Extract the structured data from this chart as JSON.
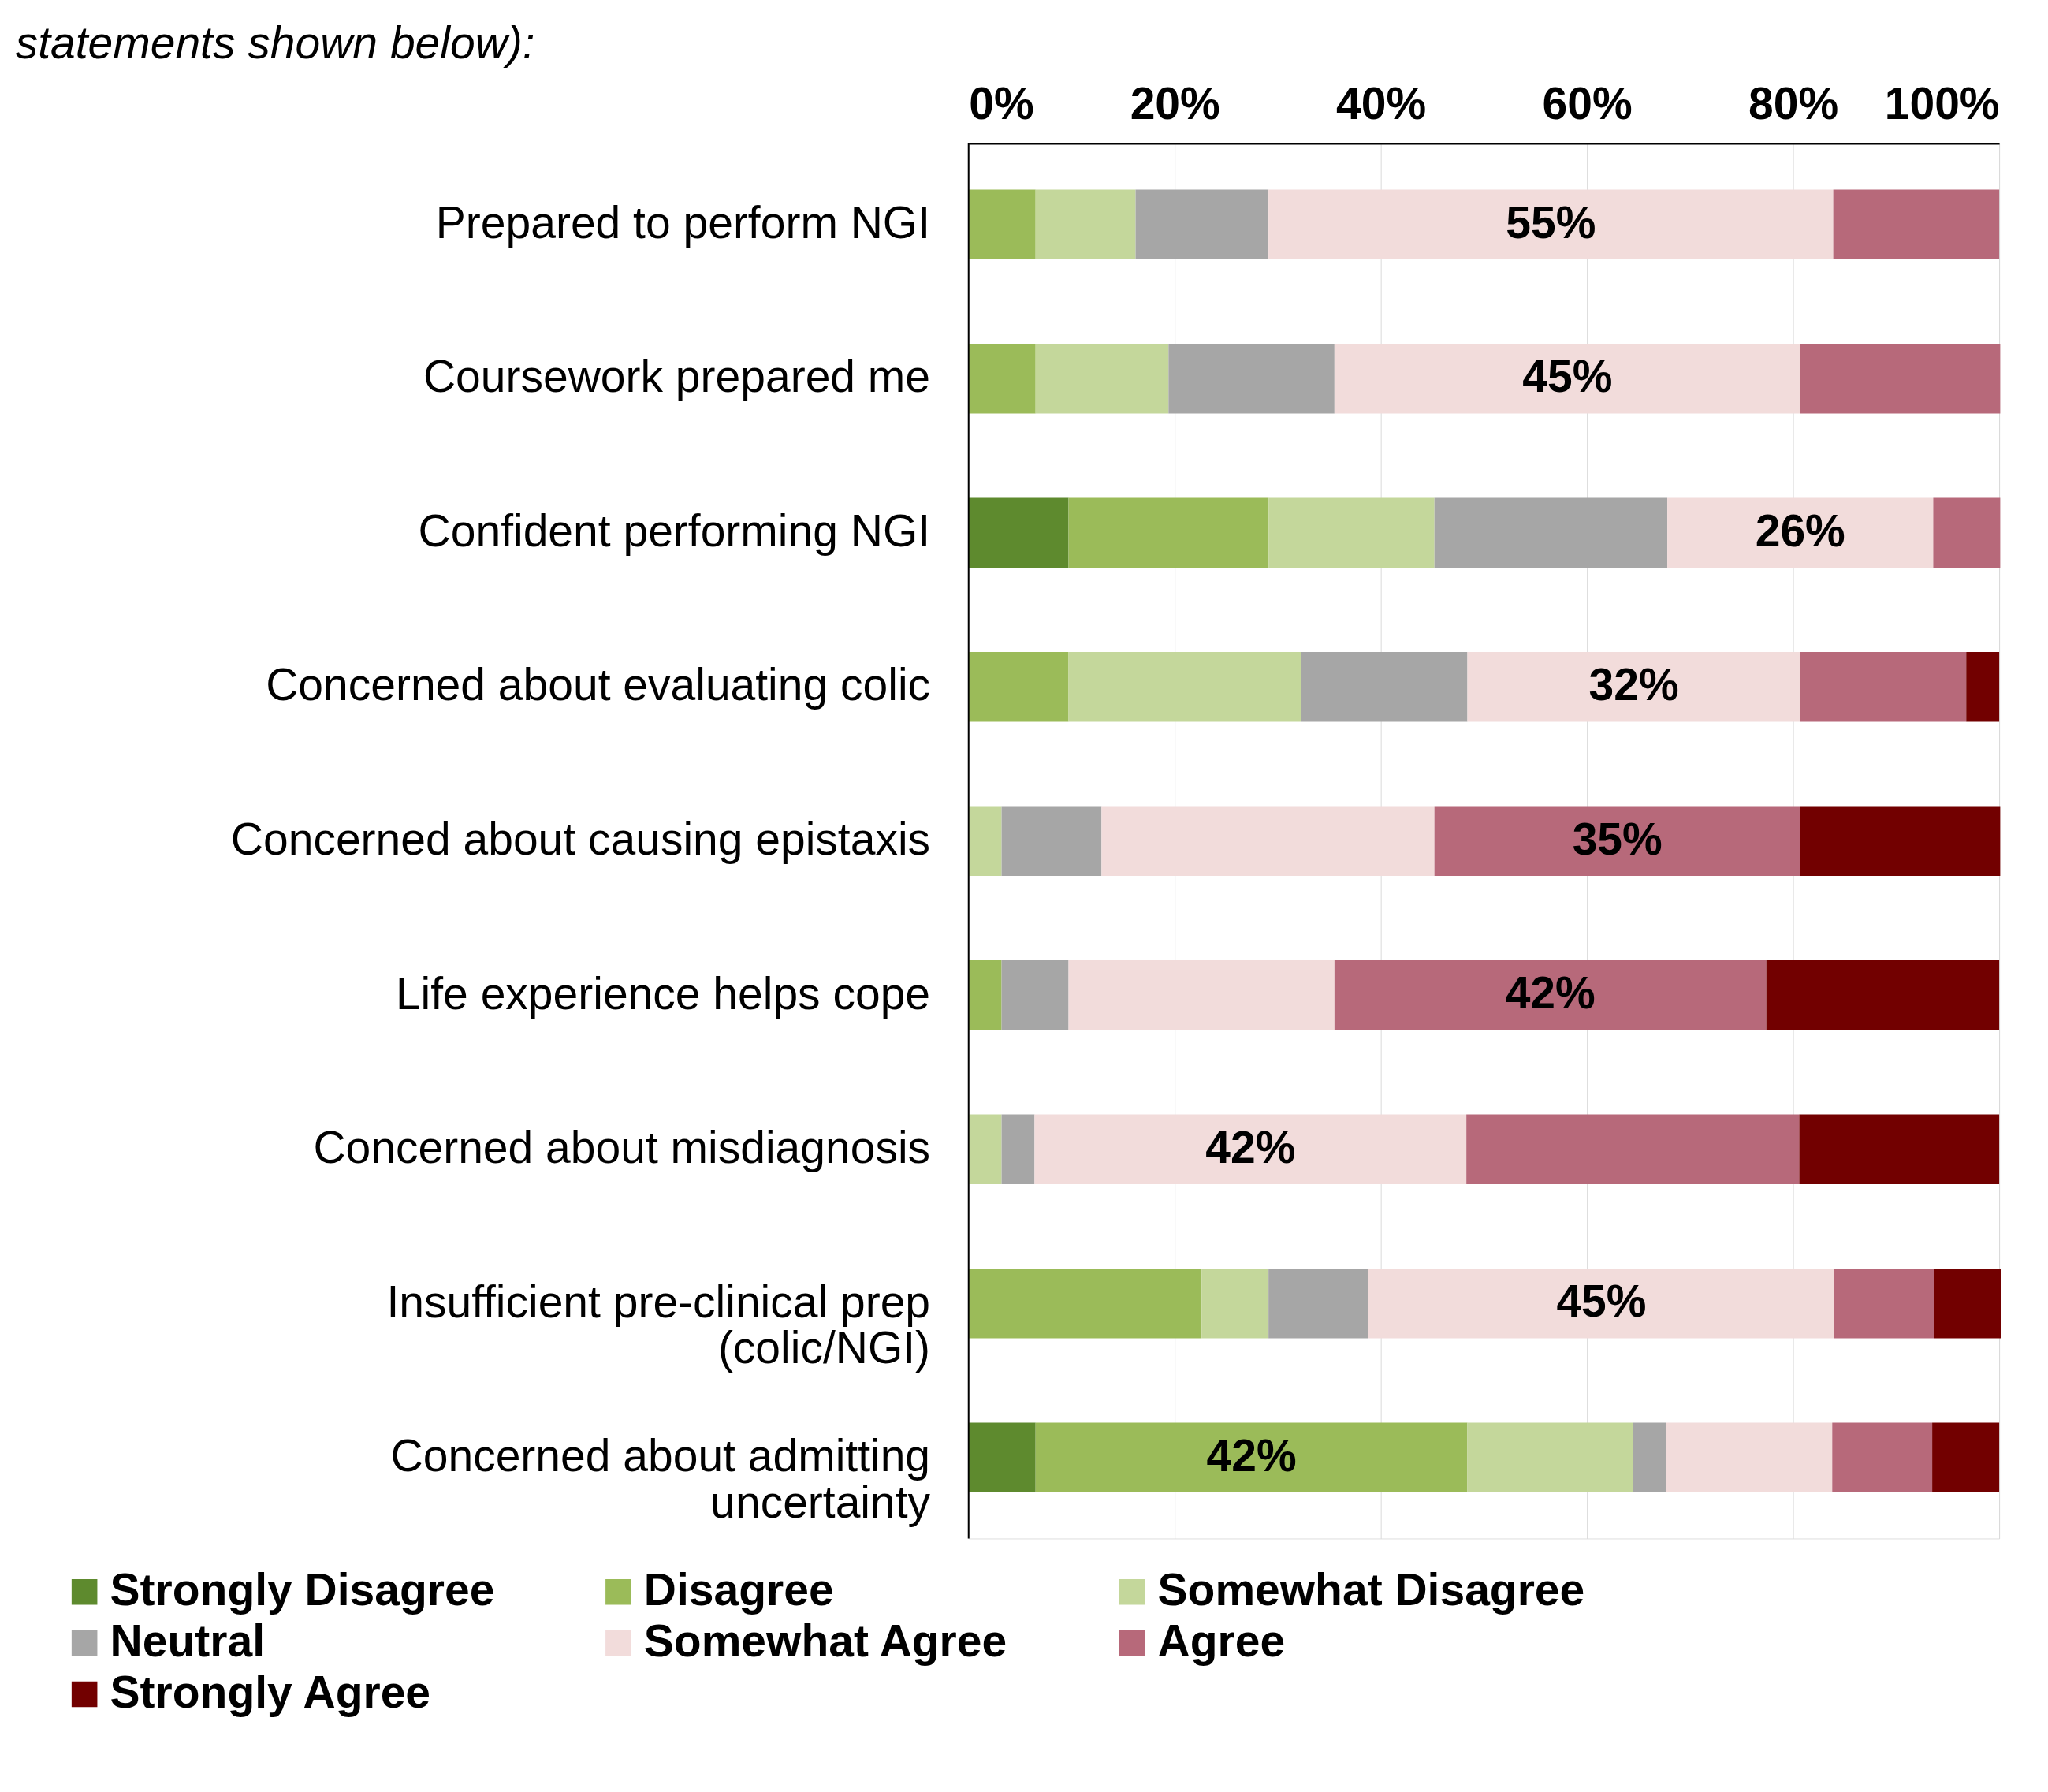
{
  "chart_data": {
    "type": "bar",
    "orientation": "horizontal",
    "stacked": true,
    "title": "statements shown below):",
    "categories": [
      "Prepared to perform NGI",
      "Coursework prepared me",
      "Confident performing NGI",
      "Concerned about evaluating colic",
      "Concerned about causing epistaxis",
      "Life experience helps cope",
      "Concerned about misdiagnosis",
      "Insufficient pre-clinical prep\n(colic/NGI)",
      "Concerned about admitting\nuncertainty"
    ],
    "series": [
      {
        "name": "Strongly Disagree",
        "color": "#5e8a2e",
        "values": [
          0,
          0,
          9.7,
          0,
          0,
          0,
          0,
          0,
          6.5
        ],
        "value_labels": [
          null,
          null,
          null,
          null,
          null,
          null,
          null,
          null,
          null
        ]
      },
      {
        "name": "Disagree",
        "color": "#9bbb59",
        "values": [
          6.5,
          6.5,
          19.4,
          9.7,
          0,
          3.2,
          0,
          22.6,
          41.9
        ],
        "value_labels": [
          null,
          null,
          null,
          null,
          null,
          null,
          null,
          null,
          "42%"
        ]
      },
      {
        "name": "Somewhat Disagree",
        "color": "#c4d79b",
        "values": [
          9.7,
          12.9,
          16.1,
          22.6,
          3.2,
          0,
          3.2,
          6.5,
          16.1
        ],
        "value_labels": [
          null,
          null,
          null,
          null,
          null,
          null,
          null,
          null,
          null
        ]
      },
      {
        "name": "Neutral",
        "color": "#a6a6a6",
        "values": [
          12.9,
          16.1,
          22.6,
          16.1,
          9.7,
          6.5,
          3.2,
          9.7,
          3.2
        ],
        "value_labels": [
          null,
          null,
          null,
          null,
          null,
          null,
          null,
          null,
          null
        ]
      },
      {
        "name": "Somewhat Agree",
        "color": "#f2dcdb",
        "values": [
          54.8,
          45.2,
          25.8,
          32.3,
          32.3,
          25.8,
          41.9,
          45.2,
          16.1
        ],
        "value_labels": [
          "55%",
          "45%",
          "26%",
          "32%",
          null,
          null,
          "42%",
          "45%",
          null
        ]
      },
      {
        "name": "Agree",
        "color": "#b7697a",
        "values": [
          16.1,
          19.4,
          6.5,
          16.1,
          35.5,
          41.9,
          32.3,
          9.7,
          9.7
        ],
        "value_labels": [
          null,
          null,
          null,
          null,
          "35%",
          "42%",
          null,
          null,
          null
        ]
      },
      {
        "name": "Strongly Agree",
        "color": "#720000",
        "values": [
          0,
          0,
          0,
          3.2,
          19.4,
          22.6,
          19.4,
          6.5,
          6.5
        ],
        "value_labels": [
          null,
          null,
          null,
          null,
          null,
          null,
          null,
          null,
          null
        ]
      }
    ],
    "xlim": [
      0,
      100
    ],
    "xticks": [
      {
        "value": 0,
        "label": "0%"
      },
      {
        "value": 20,
        "label": "20%"
      },
      {
        "value": 40,
        "label": "40%"
      },
      {
        "value": 60,
        "label": "60%"
      },
      {
        "value": 80,
        "label": "80%"
      },
      {
        "value": 100,
        "label": "100%"
      }
    ],
    "grid": "x",
    "legend": "bottom"
  }
}
